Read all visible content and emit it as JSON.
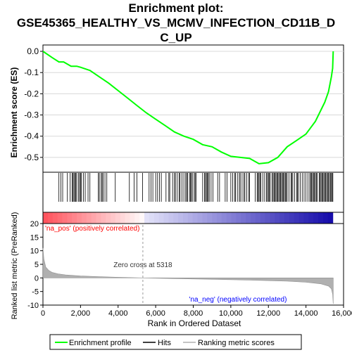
{
  "title_line1": "Enrichment plot:",
  "title_line2": "GSE45365_HEALTHY_VS_MCMV_INFECTION_CD11B_D",
  "title_line3": "C_UP",
  "colors": {
    "enrichment_line": "#00ff00",
    "hits": "#000000",
    "metric_fill": "#b0b0b0",
    "pos_label": "#ff0000",
    "neg_label": "#0000ff"
  },
  "chart_data": [
    {
      "type": "line",
      "name": "enrichment-profile",
      "ylabel": "Enrichment score (ES)",
      "xlim": [
        0,
        16000
      ],
      "ylim": [
        -0.57,
        0.03
      ],
      "yticks": [
        0.0,
        -0.1,
        -0.2,
        -0.3,
        -0.4,
        -0.5
      ],
      "ytick_labels": [
        "0.0",
        "-0.1",
        "-0.2",
        "-0.3",
        "-0.4",
        "-0.5"
      ],
      "x": [
        0,
        500,
        850,
        1100,
        1500,
        1800,
        2000,
        2500,
        3000,
        3500,
        4000,
        4500,
        5000,
        5500,
        6000,
        6500,
        7000,
        7500,
        8000,
        8500,
        9000,
        9500,
        10000,
        10500,
        11000,
        11500,
        12000,
        12500,
        13000,
        13500,
        14000,
        14500,
        15000,
        15200,
        15350,
        15420,
        15450
      ],
      "y": [
        0.0,
        -0.03,
        -0.05,
        -0.05,
        -0.07,
        -0.07,
        -0.075,
        -0.09,
        -0.12,
        -0.15,
        -0.185,
        -0.22,
        -0.255,
        -0.29,
        -0.32,
        -0.35,
        -0.38,
        -0.4,
        -0.415,
        -0.44,
        -0.45,
        -0.475,
        -0.495,
        -0.5,
        -0.505,
        -0.53,
        -0.525,
        -0.5,
        -0.45,
        -0.42,
        -0.39,
        -0.33,
        -0.24,
        -0.19,
        -0.12,
        -0.08,
        0.0
      ]
    },
    {
      "type": "area",
      "name": "ranked-list-metric",
      "ylabel": "Ranked list metric (PreRanked)",
      "xlabel": "Rank in Ordered Dataset",
      "xlim": [
        0,
        16000
      ],
      "ylim": [
        -10,
        20
      ],
      "yticks": [
        20,
        15,
        10,
        5,
        0,
        -5,
        -10
      ],
      "ytick_labels": [
        "20",
        "15",
        "10",
        "5",
        "0",
        "-5",
        "-10"
      ],
      "xticks": [
        0,
        2000,
        4000,
        6000,
        8000,
        10000,
        12000,
        14000,
        16000
      ],
      "xtick_labels": [
        "0",
        "2,000",
        "4,000",
        "6,000",
        "8,000",
        "10,000",
        "12,000",
        "14,000",
        "16,000"
      ],
      "x": [
        0,
        50,
        150,
        300,
        500,
        800,
        1200,
        2000,
        3000,
        4000,
        5318,
        7000,
        9000,
        11000,
        13000,
        14000,
        14800,
        15200,
        15350,
        15420,
        15450
      ],
      "y": [
        11,
        7,
        4,
        2.8,
        2,
        1.5,
        1.1,
        0.7,
        0.45,
        0.25,
        0,
        -0.25,
        -0.5,
        -0.8,
        -1.2,
        -1.6,
        -2.2,
        -3,
        -4,
        -6,
        -9.5
      ],
      "zero_cross_label": "Zero cross at 5318",
      "zero_cross": 5318,
      "pos_label": "'na_pos' (positively correlated)",
      "neg_label": "'na_neg' (negatively correlated)"
    }
  ],
  "hits": [
    850,
    950,
    1050,
    1300,
    1450,
    1550,
    1600,
    1650,
    1700,
    1750,
    1800,
    1900,
    1950,
    2000,
    2050,
    2150,
    2250,
    2400,
    2500,
    2950,
    3000,
    3100,
    3150,
    3200,
    3300,
    3400,
    3850,
    4600,
    4850,
    5000,
    5300,
    5650,
    5750,
    5850,
    6000,
    6100,
    6200,
    6300,
    6550,
    6700,
    6750,
    6900,
    7000,
    7050,
    7150,
    7250,
    7300,
    7400,
    7500,
    7600,
    7650,
    7700,
    7800,
    7850,
    7900,
    7950,
    8050,
    8100,
    8150,
    8500,
    8600,
    8650,
    8700,
    8750,
    8800,
    8850,
    8950,
    9050,
    9300,
    9400,
    9700,
    9800,
    10000,
    10100,
    10200,
    10250,
    10350,
    10450,
    10500,
    10600,
    10700,
    10750,
    10850,
    10950,
    11000,
    11300,
    11400,
    11450,
    11500,
    11550,
    11600,
    11700,
    11800,
    11900,
    11950,
    12000,
    12050,
    12100,
    12200,
    12250,
    12300,
    12350,
    12400,
    12450,
    12500,
    12550,
    12600,
    12650,
    12700,
    12750,
    12800,
    12850,
    12900,
    12950,
    13000,
    13100,
    13200,
    13250,
    13300,
    13400,
    13500,
    13550,
    13600,
    13700,
    13800,
    13900,
    14000,
    14100,
    14200,
    14250,
    14300,
    14350,
    14400,
    14450,
    14500,
    14550,
    14600,
    14700,
    14750,
    14800,
    14850,
    14900,
    14950,
    15000,
    15050,
    15100,
    15150,
    15200,
    15250,
    15300,
    15350,
    15400,
    15430
  ],
  "legend": {
    "enrichment_profile": "Enrichment profile",
    "hits": "Hits",
    "ranking_metric": "Ranking metric scores"
  }
}
